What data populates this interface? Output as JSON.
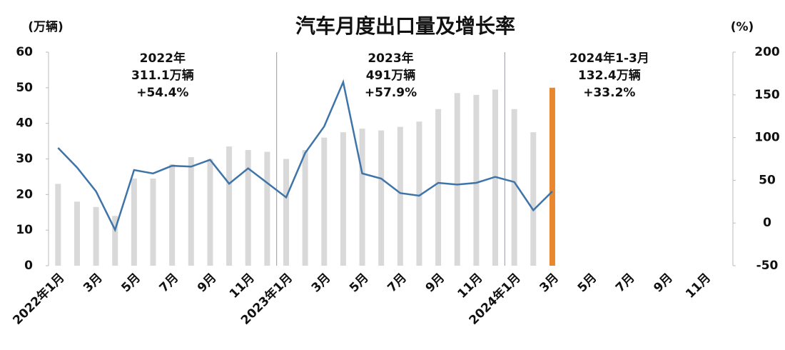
{
  "chart_data": {
    "type": "bar_line",
    "title": "汽车月度出口量及增长率",
    "ylabel": "(万辆)",
    "y2label": "(%)",
    "categories": [
      "2022年1月",
      null,
      "3月",
      null,
      "5月",
      null,
      "7月",
      null,
      "9月",
      null,
      "11月",
      null,
      "2023年1月",
      null,
      "3月",
      null,
      "5月",
      null,
      "7月",
      null,
      "9月",
      null,
      "11月",
      null,
      "2024年1月",
      null,
      "3月",
      null,
      "5月",
      null,
      "7月",
      null,
      "9月",
      null,
      "11月",
      null
    ],
    "series": [
      {
        "type": "bar",
        "color": "#d9d9d9",
        "colors": [
          "#d9d9d9",
          "#d9d9d9",
          "#d9d9d9",
          "#d9d9d9",
          "#d9d9d9",
          "#d9d9d9",
          "#d9d9d9",
          "#d9d9d9",
          "#d9d9d9",
          "#d9d9d9",
          "#d9d9d9",
          "#d9d9d9",
          "#d9d9d9",
          "#d9d9d9",
          "#d9d9d9",
          "#d9d9d9",
          "#d9d9d9",
          "#d9d9d9",
          "#d9d9d9",
          "#d9d9d9",
          "#d9d9d9",
          "#d9d9d9",
          "#d9d9d9",
          "#d9d9d9",
          "#d9d9d9",
          "#d9d9d9",
          "#e8872e",
          "#d9d9d9",
          "#d9d9d9",
          "#d9d9d9",
          "#d9d9d9",
          "#d9d9d9",
          "#d9d9d9",
          "#d9d9d9",
          "#d9d9d9",
          "#d9d9d9"
        ],
        "values": [
          23,
          18,
          16.5,
          14,
          24.5,
          24.5,
          28.5,
          30.5,
          30,
          33.5,
          32.5,
          32,
          30,
          32.5,
          36,
          37.5,
          38.5,
          38,
          39,
          40.5,
          44,
          48.5,
          48,
          49.5,
          44,
          37.5,
          50,
          null,
          null,
          null,
          null,
          null,
          null,
          null,
          null,
          null
        ]
      },
      {
        "type": "line",
        "axis": "y2",
        "color": "#3e74a8",
        "values": [
          88,
          65,
          37,
          -8,
          62,
          58,
          67,
          66,
          74,
          46,
          64,
          47,
          30,
          82,
          113,
          165,
          58,
          52,
          35,
          32,
          47,
          45,
          47,
          54,
          48,
          15,
          37,
          null,
          null,
          null,
          null,
          null,
          null,
          null,
          null,
          null
        ]
      }
    ],
    "ylim": [
      0,
      60
    ],
    "yticks": [
      0,
      10,
      20,
      30,
      40,
      50,
      60
    ],
    "y2lim": [
      -50,
      200
    ],
    "y2ticks": [
      -50,
      0,
      50,
      100,
      150,
      200
    ],
    "grid": false,
    "annotations": [
      {
        "lines": [
          "2022年",
          "311.1万辆",
          "+54.4%"
        ]
      },
      {
        "lines": [
          "2023年",
          "491万辆",
          "+57.9%"
        ]
      },
      {
        "lines": [
          "2024年1-3月",
          "132.4万辆",
          "+33.2%"
        ]
      }
    ]
  }
}
